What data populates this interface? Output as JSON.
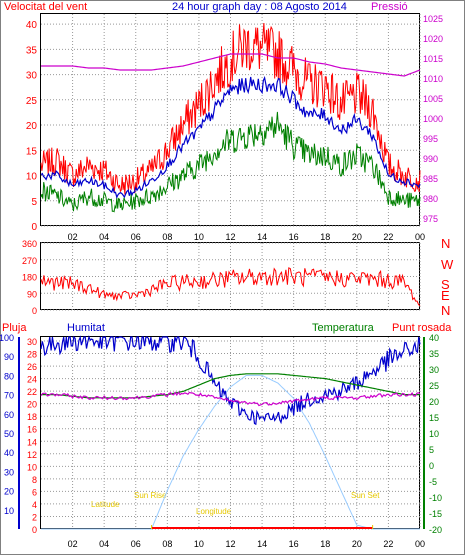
{
  "title": "24 hour graph day : 08 Agosto 2014",
  "colors": {
    "wind": "#ff0000",
    "wind_avg": "#0000cc",
    "wind_min": "#008000",
    "pressure": "#cc00cc",
    "humidity": "#0000cc",
    "temperature": "#008000",
    "dewpoint": "#cc00cc",
    "rain": "#ff0000",
    "solar": "#99ccff",
    "sun_labels": "#e6c800",
    "grid": "#999999"
  },
  "time_ticks": [
    "02",
    "04",
    "06",
    "08",
    "10",
    "12",
    "14",
    "16",
    "18",
    "20",
    "22",
    "00"
  ],
  "chart_data": [
    {
      "type": "line",
      "id": "wind-pressure",
      "left_label": "Velocitat del vent",
      "right_label": "Pressió",
      "y_left_ticks": [
        "0",
        "5",
        "10",
        "15",
        "20",
        "25",
        "30",
        "35",
        "40"
      ],
      "y_right_ticks": [
        "975",
        "980",
        "985",
        "990",
        "995",
        "1000",
        "1005",
        "1010",
        "1015",
        "1020",
        "1025"
      ],
      "ylim_left": [
        0,
        42
      ],
      "ylim_right": [
        973,
        1026
      ],
      "x": [
        0,
        1,
        2,
        3,
        4,
        5,
        6,
        7,
        8,
        9,
        10,
        11,
        12,
        13,
        14,
        15,
        16,
        17,
        18,
        19,
        20,
        21,
        22,
        23,
        24
      ],
      "series": [
        {
          "name": "Velocitat del vent",
          "values": [
            12,
            13,
            10,
            12,
            11,
            8,
            9,
            11,
            15,
            20,
            24,
            29,
            33,
            36,
            35,
            34,
            31,
            28,
            28,
            24,
            26,
            23,
            12,
            10,
            9
          ]
        },
        {
          "values": [
            10,
            10,
            8,
            9,
            8,
            6,
            7,
            9,
            12,
            16,
            19,
            23,
            27,
            28,
            28,
            28,
            25,
            22,
            22,
            19,
            21,
            18,
            10,
            9,
            8
          ]
        },
        {
          "values": [
            7,
            6,
            4,
            6,
            5,
            4,
            5,
            6,
            8,
            10,
            12,
            15,
            17,
            18,
            19,
            20,
            16,
            14,
            14,
            12,
            14,
            12,
            6,
            5,
            5
          ]
        },
        {
          "name": "Pressió",
          "values": [
            1013,
            1013,
            1013,
            1012.5,
            1012.5,
            1012,
            1012,
            1012,
            1012.5,
            1013,
            1014,
            1015,
            1016,
            1016,
            1016,
            1015,
            1015,
            1014,
            1013.5,
            1012.5,
            1012,
            1011.5,
            1011,
            1010.5,
            1012
          ]
        }
      ]
    },
    {
      "type": "line",
      "id": "wind-direction",
      "y_left_ticks": [
        "0",
        "90",
        "180",
        "270",
        "360"
      ],
      "y_right_ticks": [
        "N",
        "E",
        "S",
        "W",
        "N"
      ],
      "ylim": [
        0,
        360
      ],
      "x": [
        0,
        0.5,
        1,
        2,
        3,
        3.5,
        4,
        5,
        6,
        7,
        8,
        9,
        10,
        11,
        12,
        13,
        14,
        15,
        16,
        17,
        18,
        19,
        20,
        21,
        22,
        23,
        24
      ],
      "series": [
        {
          "name": "direction",
          "values": [
            160,
            150,
            145,
            140,
            120,
            100,
            80,
            75,
            80,
            110,
            140,
            150,
            155,
            160,
            170,
            175,
            180,
            185,
            178,
            175,
            172,
            170,
            170,
            165,
            160,
            150,
            20
          ]
        }
      ]
    },
    {
      "type": "line",
      "id": "humidity-temperature",
      "labels": [
        "Pluja",
        "Humitat",
        "Temperatura",
        "Punt rosada"
      ],
      "y_rain_ticks": [
        "0",
        "2",
        "4",
        "6",
        "8",
        "10",
        "12",
        "14",
        "16",
        "18",
        "20",
        "22",
        "24",
        "26",
        "28",
        "30"
      ],
      "y_humidity_ticks": [
        "10",
        "20",
        "30",
        "40",
        "50",
        "60",
        "70",
        "80",
        "90",
        "100"
      ],
      "y_temp_ticks": [
        "-20",
        "-15",
        "-10",
        "-5",
        "0",
        "5",
        "10",
        "15",
        "20",
        "25",
        "30",
        "35",
        "40"
      ],
      "ylim_humidity": [
        0,
        100
      ],
      "ylim_temp": [
        -20,
        40
      ],
      "x": [
        0,
        1,
        2,
        3,
        4,
        5,
        6,
        7,
        8,
        9,
        10,
        11,
        12,
        13,
        14,
        15,
        16,
        17,
        18,
        19,
        20,
        21,
        22,
        23,
        24
      ],
      "series": [
        {
          "name": "Humitat",
          "values": [
            95,
            97,
            98,
            98,
            98,
            98,
            98,
            98,
            98,
            98,
            90,
            75,
            66,
            60,
            57,
            58,
            63,
            68,
            70,
            72,
            76,
            82,
            88,
            92,
            96
          ]
        },
        {
          "name": "Temperatura",
          "values": [
            22,
            22,
            21.5,
            21,
            21,
            21,
            21,
            21.5,
            22,
            23,
            25,
            27,
            28,
            28.5,
            28.5,
            28.5,
            28,
            27.5,
            27,
            26,
            25,
            24,
            23,
            22,
            22
          ]
        },
        {
          "name": "Punt rosada",
          "values": [
            22,
            22,
            21.5,
            21,
            21,
            21,
            21,
            21.5,
            22,
            22.5,
            22,
            21,
            20,
            19.5,
            19,
            19.5,
            20,
            20.5,
            21,
            21,
            21,
            21.5,
            22,
            22,
            22
          ]
        },
        {
          "values": [
            0,
            0,
            0,
            0,
            0,
            0,
            0,
            0,
            20,
            38,
            52,
            64,
            74,
            80,
            80,
            76,
            68,
            55,
            38,
            20,
            2,
            0,
            0,
            0,
            0
          ]
        },
        {
          "name": "Pluja",
          "values": [
            0,
            0,
            0,
            0,
            0,
            0,
            0,
            0,
            0,
            0,
            0,
            0,
            0,
            0,
            0,
            0,
            0,
            0,
            0,
            0,
            0,
            0,
            0,
            0,
            0
          ]
        }
      ],
      "annotations": [
        "Sun Rise",
        "Sun Set",
        "Latitude",
        "Longitude"
      ]
    }
  ]
}
